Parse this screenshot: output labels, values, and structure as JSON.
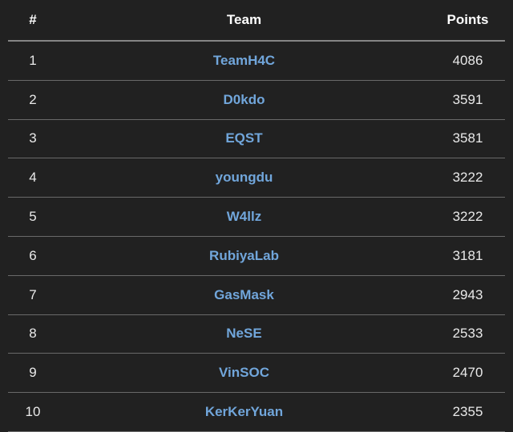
{
  "table": {
    "columns": [
      {
        "key": "rank",
        "label": "#"
      },
      {
        "key": "team",
        "label": "Team"
      },
      {
        "key": "points",
        "label": "Points"
      }
    ],
    "rows": [
      {
        "rank": "1",
        "team": "TeamH4C",
        "points": "4086"
      },
      {
        "rank": "2",
        "team": "D0kdo",
        "points": "3591"
      },
      {
        "rank": "3",
        "team": "EQST",
        "points": "3581"
      },
      {
        "rank": "4",
        "team": "youngdu",
        "points": "3222"
      },
      {
        "rank": "5",
        "team": "W4llz",
        "points": "3222"
      },
      {
        "rank": "6",
        "team": "RubiyaLab",
        "points": "3181"
      },
      {
        "rank": "7",
        "team": "GasMask",
        "points": "2943"
      },
      {
        "rank": "8",
        "team": "NeSE",
        "points": "2533"
      },
      {
        "rank": "9",
        "team": "VinSOC",
        "points": "2470"
      },
      {
        "rank": "10",
        "team": "KerKerYuan",
        "points": "2355"
      }
    ],
    "colors": {
      "background": "#212121",
      "header_text": "#ffffff",
      "row_text": "#e9e9e9",
      "team_link": "#71a6db",
      "header_border": "#858585",
      "row_border": "#696969"
    }
  }
}
